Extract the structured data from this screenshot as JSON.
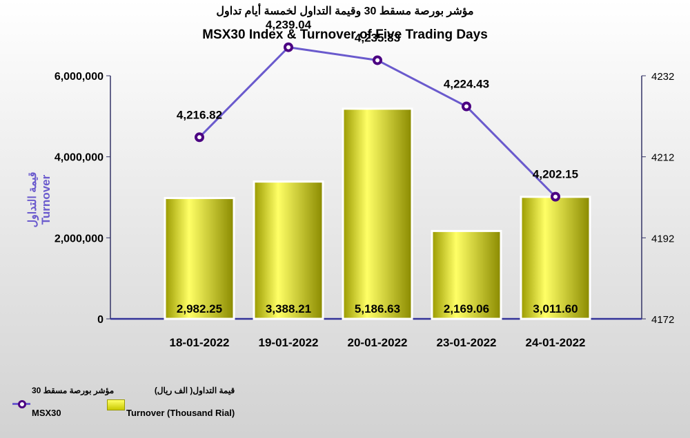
{
  "title_ar": "مؤشر بورصة مسقط 30 وقيمة التداول لخمسة أيام تداول",
  "title_en": "MSX30 Index & Turnover of Five Trading Days",
  "legend": {
    "index_ar": "مؤشر بورصة مسقط 30",
    "index_en": "MSX30",
    "turnover_ar": "قيمة التداول( الف ريال)",
    "turnover_en": "Turnover (Thousand Rial)"
  },
  "colors": {
    "bar_top": "#ffff55",
    "bar_bottom": "#b8b800",
    "line": "#6a5acd",
    "marker": "#4b0082",
    "axis": "#333366"
  },
  "chart_data": {
    "type": "bar",
    "categories": [
      "18-01-2022",
      "19-01-2022",
      "20-01-2022",
      "23-01-2022",
      "24-01-2022"
    ],
    "series": [
      {
        "name": "Turnover (Thousand Rial)",
        "type": "bar",
        "axis": "left",
        "values": [
          2982.25,
          3388.21,
          5186.63,
          2169.06,
          3011.6
        ],
        "labels": [
          "2,982.25",
          "3,388.21",
          "5,186.63",
          "2,169.06",
          "3,011.60"
        ]
      },
      {
        "name": "MSX30",
        "type": "line",
        "axis": "right",
        "values": [
          4216.82,
          4239.04,
          4235.83,
          4224.43,
          4202.15
        ],
        "labels": [
          "4,216.82",
          "4,239.04",
          "4,235.83",
          "4,224.43",
          "4,202.15"
        ]
      }
    ],
    "ylabel_left_ar": "قيمة التداول",
    "ylabel_left_en": "Turnover",
    "y_left_ticks": [
      "0",
      "2,000,000",
      "4,000,000",
      "6,000,000"
    ],
    "y_left_ticks_values": [
      0,
      2000000,
      4000000,
      6000000
    ],
    "y_left_lim": [
      0,
      6000000
    ],
    "y_right_ticks": [
      "4172",
      "4192",
      "4212",
      "4232"
    ],
    "y_right_ticks_values": [
      4172,
      4192,
      4212,
      4232
    ],
    "y_right_lim": [
      4172,
      4232
    ],
    "grid": false,
    "legend_position": "bottom-left"
  }
}
